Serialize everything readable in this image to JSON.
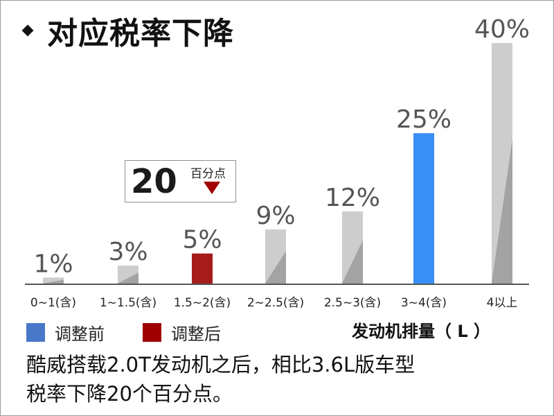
{
  "title": "对应税率下降",
  "callout": {
    "value": "20",
    "unit": "百分点",
    "arrow_color": "#a00000"
  },
  "legend": [
    {
      "label": "调整前",
      "color": "#4a78c8"
    },
    {
      "label": "调整后",
      "color": "#a00000"
    }
  ],
  "xaxis_title": "发动机排量（ L ）",
  "caption": {
    "line1": "酷威搭载2.0T发动机之后，相比3.6L版车型",
    "line2": "税率下降20个百分点。"
  },
  "chart_data": {
    "type": "bar",
    "categories": [
      "0~1(含)",
      "1~1.5(含)",
      "1.5~2(含)",
      "2~2.5(含)",
      "2.5~3(含)",
      "3~4(含)",
      "4以上"
    ],
    "values": [
      1,
      3,
      5,
      9,
      12,
      25,
      40
    ],
    "value_labels": [
      "1%",
      "3%",
      "5%",
      "9%",
      "12%",
      "25%",
      "40%"
    ],
    "bar_colors": [
      "gray",
      "gray",
      "#a61c1c",
      "gray",
      "gray",
      "#3a8ff5",
      "gray"
    ],
    "unit": "%",
    "ylim": [
      0,
      40
    ],
    "grid": false,
    "legend_position": "bottom-left"
  }
}
